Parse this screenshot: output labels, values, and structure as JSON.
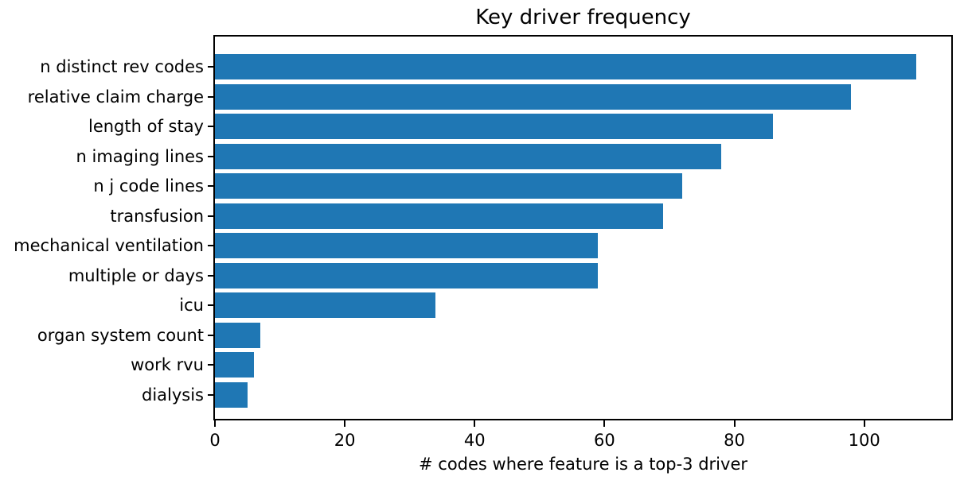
{
  "chart_data": {
    "type": "bar",
    "orientation": "horizontal",
    "title": "Key driver frequency",
    "xlabel": "# codes where feature is a top-3 driver",
    "categories": [
      "n distinct rev codes",
      "relative claim charge",
      "length of stay",
      "n imaging lines",
      "n j code lines",
      "transfusion",
      "mechanical ventilation",
      "multiple or days",
      "icu",
      "organ system count",
      "work rvu",
      "dialysis"
    ],
    "values": [
      108,
      98,
      86,
      78,
      72,
      69,
      59,
      59,
      34,
      7,
      6,
      5
    ],
    "xticks": [
      0,
      20,
      40,
      60,
      80,
      100
    ],
    "xlim": [
      0,
      113.4
    ],
    "grid": false,
    "legend_position": "none",
    "bar_color": "#1f77b4",
    "spine_color": "#000000",
    "text_color": "#000000",
    "background_color": "#ffffff"
  }
}
